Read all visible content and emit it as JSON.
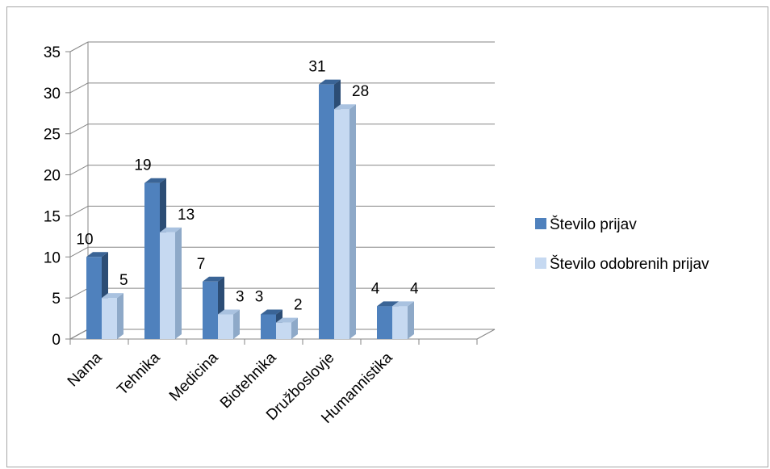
{
  "chart_data": {
    "type": "bar",
    "style": "3d-clustered-column",
    "categories": [
      "Nama",
      "Tehnika",
      "Medicina",
      "Biotehnika",
      "Družboslovje",
      "Humannistika"
    ],
    "series": [
      {
        "name": "Število prijav",
        "values": [
          10,
          19,
          7,
          3,
          31,
          4
        ],
        "color": "#4f81bd",
        "side_color": "#2c4d75",
        "top_color": "#3a6496"
      },
      {
        "name": "Število odobrenih prijav",
        "values": [
          5,
          13,
          3,
          2,
          28,
          4
        ],
        "color": "#c6d9f1",
        "side_color": "#8ea9c8",
        "top_color": "#a9c2e0"
      }
    ],
    "ylim": [
      0,
      35
    ],
    "yticks": [
      0,
      5,
      10,
      15,
      20,
      25,
      30,
      35
    ],
    "grid": true,
    "data_labels": true,
    "legend_position": "right"
  }
}
